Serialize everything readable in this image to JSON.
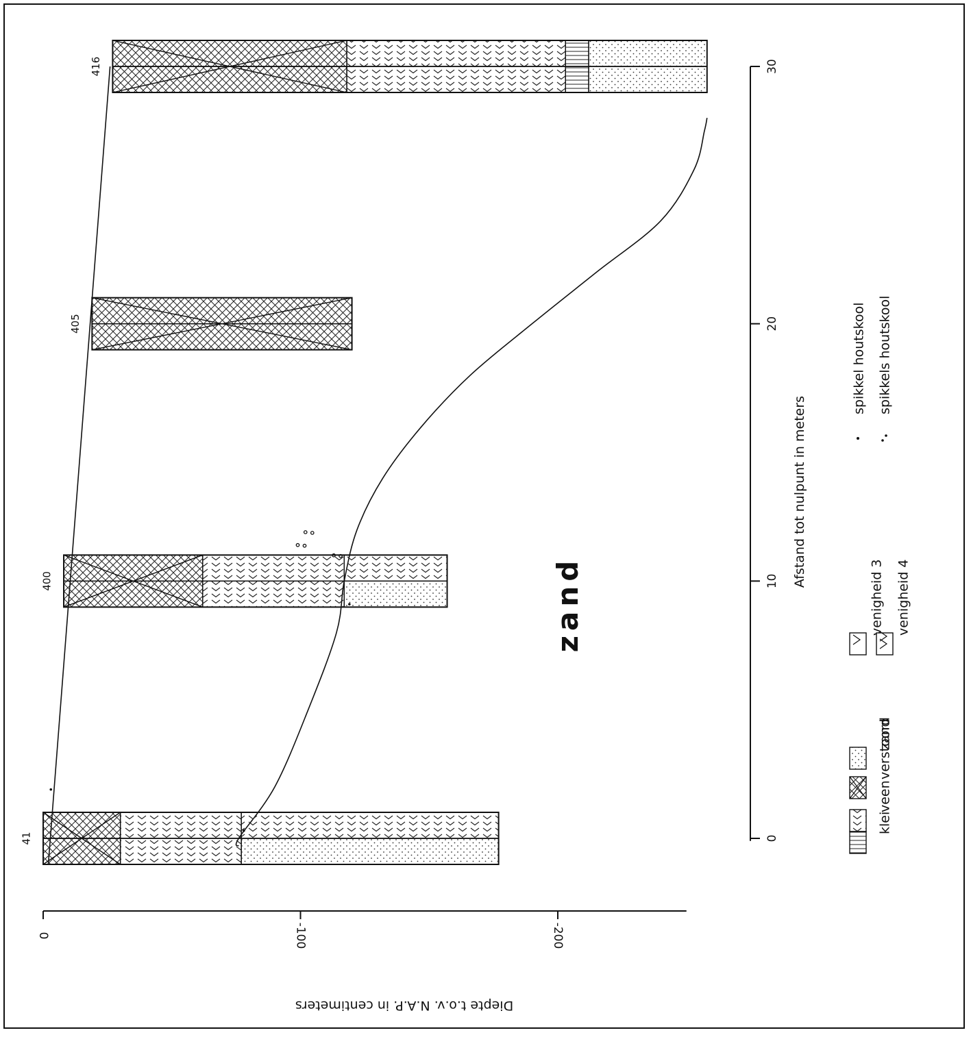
{
  "figure": {
    "y_axis_label": "Diepte t.o.v. N.A.P. in centimeters",
    "x_axis_label": "Afstand tot nulpunt in meters",
    "region_label": "zand",
    "orientation": "rotated 90° clockwise"
  },
  "axes": {
    "x": {
      "unit": "meters",
      "range": [
        0,
        30
      ],
      "ticks": [
        "0",
        "10",
        "20",
        "30"
      ]
    },
    "y": {
      "unit": "cm N.A.P.",
      "range": [
        0,
        -250
      ],
      "ticks": [
        "0",
        "-100",
        "-200"
      ]
    }
  },
  "borings": [
    {
      "id": "41",
      "distance_m": 0,
      "layers": [
        {
          "from_cm": 0,
          "to_cm": -30,
          "left": "verstoord",
          "right": "verstoord"
        },
        {
          "from_cm": -30,
          "to_cm": -77,
          "left": "veen",
          "right": "veen"
        },
        {
          "from_cm": -77,
          "to_cm": -177,
          "left": "veen",
          "right": "zand"
        }
      ]
    },
    {
      "id": "400",
      "distance_m": 10,
      "layers": [
        {
          "from_cm": -8,
          "to_cm": -62,
          "left": "verstoord",
          "right": "verstoord"
        },
        {
          "from_cm": -62,
          "to_cm": -117,
          "left": "veen",
          "right": "veen"
        },
        {
          "from_cm": -117,
          "to_cm": -157,
          "left": "veen",
          "right": "zand"
        }
      ]
    },
    {
      "id": "405",
      "distance_m": 20,
      "layers": [
        {
          "from_cm": -19,
          "to_cm": -120,
          "left": "verstoord",
          "right": "verstoord"
        }
      ]
    },
    {
      "id": "416",
      "distance_m": 30,
      "layers": [
        {
          "from_cm": -27,
          "to_cm": -118,
          "left": "verstoord",
          "right": "verstoord"
        },
        {
          "from_cm": -118,
          "to_cm": -203,
          "left": "veen",
          "right": "veen"
        },
        {
          "from_cm": -203,
          "to_cm": -212,
          "left": "klei",
          "right": "klei"
        },
        {
          "from_cm": -212,
          "to_cm": -258,
          "left": "zand",
          "right": "zand"
        }
      ]
    }
  ],
  "surface_line": [
    [
      -1,
      -2
    ],
    [
      30,
      -26
    ]
  ],
  "sand_boundary": [
    [
      -0.3,
      -76
    ],
    [
      0,
      -76
    ],
    [
      2,
      -90
    ],
    [
      5,
      -103
    ],
    [
      8,
      -114
    ],
    [
      10,
      -117
    ],
    [
      12,
      -122
    ],
    [
      14,
      -132
    ],
    [
      16,
      -147
    ],
    [
      18,
      -166
    ],
    [
      20,
      -190
    ],
    [
      22,
      -215
    ],
    [
      24,
      -240
    ],
    [
      26,
      -253
    ],
    [
      27.5,
      -257
    ],
    [
      28,
      -258
    ]
  ],
  "charcoal_marks": [
    {
      "distance_m": 11,
      "depth_cm": -114,
      "count": 2
    },
    {
      "distance_m": 11.4,
      "depth_cm": -100,
      "count": 2
    },
    {
      "distance_m": 11.9,
      "depth_cm": -103,
      "count": 2
    },
    {
      "distance_m": 0.3,
      "depth_cm": -78,
      "count": 1
    },
    {
      "distance_m": 1.9,
      "depth_cm": -3,
      "count": 1
    },
    {
      "distance_m": 9.1,
      "depth_cm": -119,
      "count": 1
    }
  ],
  "legend": {
    "materials": [
      {
        "key": "klei",
        "label": "klei"
      },
      {
        "key": "veen",
        "label": "veen"
      },
      {
        "key": "verstoord",
        "label": "verstoord"
      },
      {
        "key": "zand",
        "label": "zand"
      }
    ],
    "disturbance": [
      {
        "key": "venigheid3",
        "label": "venigheid 3"
      },
      {
        "key": "venigheid4",
        "label": "venigheid 4"
      }
    ],
    "charcoal": [
      {
        "count": 1,
        "label": "spikkel houtskool"
      },
      {
        "count": 2,
        "label": "spikkels houtskool"
      }
    ]
  }
}
